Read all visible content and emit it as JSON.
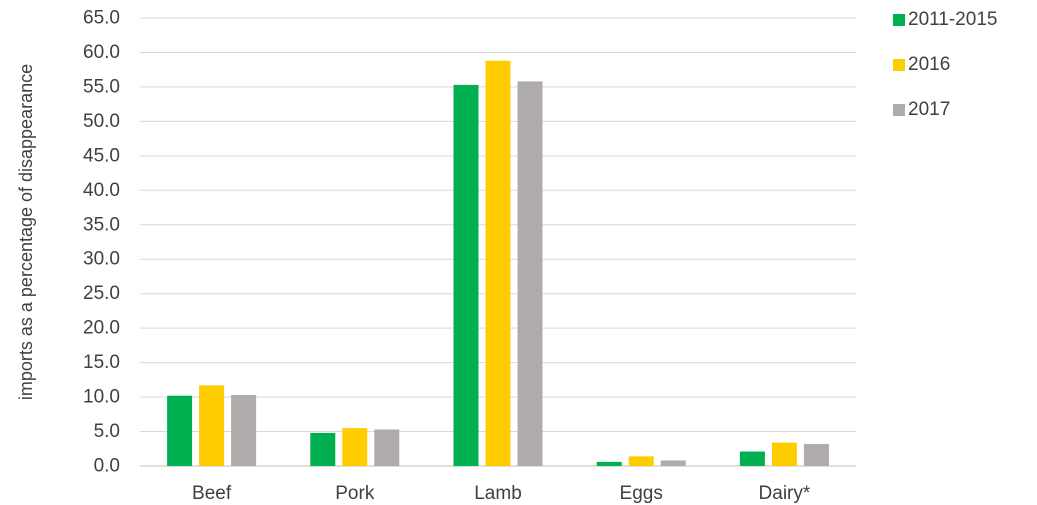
{
  "chart_data": {
    "type": "bar",
    "categories": [
      "Beef",
      "Pork",
      "Lamb",
      "Eggs",
      "Dairy*"
    ],
    "series": [
      {
        "name": "2011-2015",
        "color": "#00B050",
        "values": [
          10.2,
          4.8,
          55.3,
          0.6,
          2.1
        ]
      },
      {
        "name": "2016",
        "color": "#FFCC00",
        "values": [
          11.7,
          5.5,
          58.8,
          1.4,
          3.4
        ]
      },
      {
        "name": "2017",
        "color": "#AFABAB",
        "values": [
          10.3,
          5.3,
          55.8,
          0.8,
          3.2
        ]
      }
    ],
    "ylabel": "imports as a percentage of disappearance",
    "ylim": [
      0,
      65
    ],
    "yticks": [
      "0.0",
      "5.0",
      "10.0",
      "15.0",
      "20.0",
      "25.0",
      "30.0",
      "35.0",
      "40.0",
      "45.0",
      "50.0",
      "55.0",
      "60.0",
      "65.0"
    ],
    "grid": true,
    "legend_position": "top-right",
    "gridline_color": "#D9D9D9"
  }
}
